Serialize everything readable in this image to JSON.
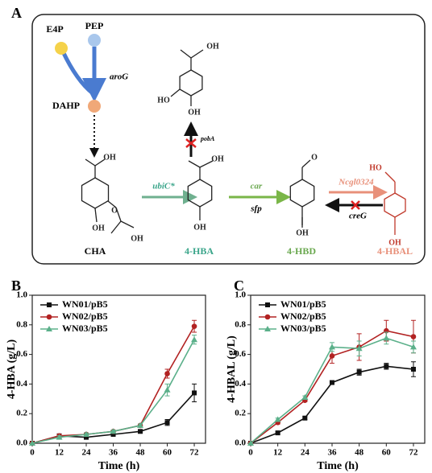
{
  "panel_a": {
    "label": "A",
    "metabolites": {
      "e4p": "E4P",
      "pep": "PEP",
      "dahp": "DAHP",
      "cha": "CHA",
      "hba": "4-HBA",
      "hbd": "4-HBD",
      "hbal": "4-HBAL"
    },
    "enzymes": {
      "arog": "aroG",
      "poba": "pobA",
      "ubic": "ubiC*",
      "car": "car",
      "sfp": "sfp",
      "ncgl": "Ncgl0324",
      "creg": "creG"
    },
    "atoms": [
      "OH",
      "HO",
      "OH",
      "OH",
      "O",
      "OH",
      "OH",
      "OH",
      "OH",
      "O",
      "OH",
      "HO",
      "OH"
    ]
  },
  "chart_data": [
    {
      "type": "line",
      "panel_label": "B",
      "x_label": "Time (h)",
      "y_label": "4-HBA (g/L)",
      "x": [
        0,
        12,
        24,
        36,
        48,
        60,
        72
      ],
      "xlim": [
        0,
        77
      ],
      "xticks": [
        0,
        12,
        24,
        36,
        48,
        60,
        72
      ],
      "ylim": [
        0,
        1
      ],
      "yticks": [
        {
          "value": 0,
          "label": "0.0"
        },
        0.2,
        0.4,
        0.6,
        0.8,
        {
          "value": 1,
          "label": "1.0"
        }
      ],
      "legend": "upper left",
      "series": [
        {
          "name": "WN01/pB5",
          "color": "#111111",
          "marker": "square",
          "values": [
            0,
            0.05,
            0.04,
            0.06,
            0.08,
            0.14,
            0.34
          ],
          "errors": [
            0,
            0.01,
            0.005,
            0.005,
            0.005,
            0.02,
            0.06
          ]
        },
        {
          "name": "WN02/pB5",
          "color": "#b22222",
          "marker": "circle",
          "values": [
            0,
            0.05,
            0.06,
            0.08,
            0.12,
            0.47,
            0.79
          ],
          "errors": [
            0,
            0.01,
            0.01,
            0.01,
            0.01,
            0.03,
            0.04
          ]
        },
        {
          "name": "WN03/pB5",
          "color": "#5bb08a",
          "marker": "triangle",
          "values": [
            0,
            0.04,
            0.06,
            0.08,
            0.12,
            0.36,
            0.7
          ],
          "errors": [
            0,
            0.01,
            0.01,
            0.01,
            0.01,
            0.04,
            0.03
          ]
        }
      ]
    },
    {
      "type": "line",
      "panel_label": "C",
      "x_label": "Time (h)",
      "y_label": "4-HBAL (g/L)",
      "x": [
        0,
        12,
        24,
        36,
        48,
        60,
        72
      ],
      "xlim": [
        0,
        77
      ],
      "xticks": [
        0,
        12,
        24,
        36,
        48,
        60,
        72
      ],
      "ylim": [
        0,
        1
      ],
      "yticks": [
        {
          "value": 0,
          "label": "0.0"
        },
        0.2,
        0.4,
        0.6,
        0.8,
        {
          "value": 1,
          "label": "1.0"
        }
      ],
      "legend": "upper left",
      "series": [
        {
          "name": "WN01/pB5",
          "color": "#111111",
          "marker": "square",
          "values": [
            0,
            0.07,
            0.17,
            0.41,
            0.48,
            0.52,
            0.5
          ],
          "errors": [
            0,
            0.01,
            0.01,
            0.01,
            0.02,
            0.02,
            0.05
          ]
        },
        {
          "name": "WN02/pB5",
          "color": "#b22222",
          "marker": "circle",
          "values": [
            0,
            0.14,
            0.29,
            0.59,
            0.65,
            0.76,
            0.72
          ],
          "errors": [
            0,
            0.01,
            0.01,
            0.05,
            0.09,
            0.07,
            0.11
          ]
        },
        {
          "name": "WN03/pB5",
          "color": "#5bb08a",
          "marker": "triangle",
          "values": [
            0,
            0.16,
            0.31,
            0.65,
            0.64,
            0.71,
            0.65
          ],
          "errors": [
            0,
            0.01,
            0.01,
            0.03,
            0.05,
            0.04,
            0.04
          ]
        }
      ]
    }
  ]
}
